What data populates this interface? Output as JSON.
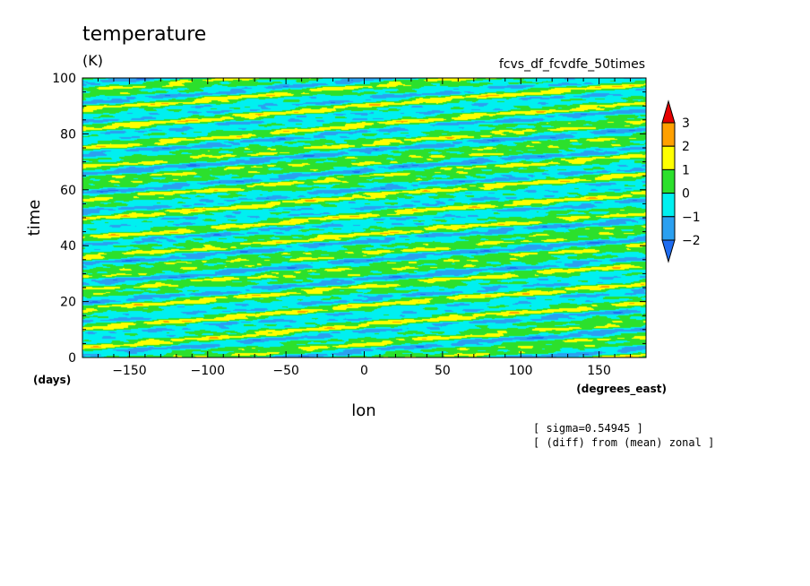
{
  "chart_data": {
    "type": "heatmap",
    "title": "temperature",
    "units": "(K)",
    "experiment": "fcvs_df_fcvdfe_50times",
    "xlabel": "lon",
    "ylabel": "time",
    "x_units": "(degrees_east)",
    "y_units": "(days)",
    "xlim": [
      -180,
      180
    ],
    "ylim": [
      0,
      100
    ],
    "x_ticks": [
      -150,
      -100,
      -50,
      0,
      50,
      100,
      150
    ],
    "y_ticks": [
      0,
      20,
      40,
      60,
      80,
      100
    ],
    "x_tick_labels": [
      "−150",
      "−100",
      "−50",
      "0",
      "50",
      "100",
      "150"
    ],
    "y_tick_labels": [
      "0",
      "20",
      "40",
      "60",
      "80",
      "100"
    ],
    "colorbar": {
      "levels": [
        -2,
        -1,
        0,
        1,
        2,
        3
      ],
      "labels": [
        "−2",
        "−1",
        "0",
        "1",
        "2",
        "3"
      ],
      "colors": [
        "#1e6cf0",
        "#2ba0f0",
        "#00f0f0",
        "#2ce02c",
        "#ffff00",
        "#ffa000",
        "#e60000"
      ]
    },
    "note_lines": [
      "[ sigma=0.54945 ]",
      "[ (diff) from (mean) zonal ]"
    ],
    "pattern": {
      "description_values": "band-structured anomaly field tilting eastward with time",
      "band_slope_days_per_degree": 0.045,
      "band_spacing_days": 6.5,
      "sigma": 0.54945
    }
  }
}
